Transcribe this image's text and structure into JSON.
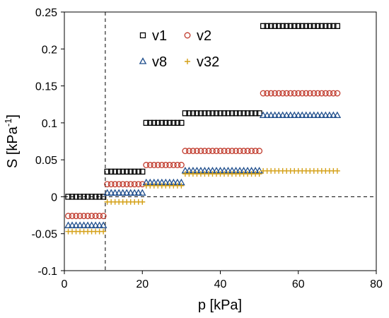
{
  "chart_data": {
    "type": "scatter",
    "xlabel": "p [kPa]",
    "ylabel_main": "S [kPa",
    "ylabel_sup": "-1",
    "ylabel_end": "]",
    "xlim": [
      0,
      80
    ],
    "ylim": [
      -0.1,
      0.25
    ],
    "xticks": [
      0,
      20,
      40,
      60,
      80
    ],
    "yticks": [
      -0.1,
      -0.05,
      0,
      0.05,
      0.1,
      0.15,
      0.2,
      0.25
    ],
    "xtick_labels": [
      "0",
      "20",
      "40",
      "60",
      "80"
    ],
    "ytick_labels": [
      "-0.1",
      "-0.05",
      "0",
      "0.05",
      "0.1",
      "0.15",
      "0.2",
      "0.25"
    ],
    "grid": false,
    "legend_position": "top-right",
    "reference_lines": {
      "vertical_x": 10.5,
      "horizontal_y": 0
    },
    "series": [
      {
        "name": "v1",
        "marker": "square",
        "color": "#000000",
        "segments": [
          {
            "x_start": 1,
            "x_end": 10,
            "y": 0.0
          },
          {
            "x_start": 11,
            "x_end": 20,
            "y": 0.034
          },
          {
            "x_start": 21,
            "x_end": 30,
            "y": 0.1
          },
          {
            "x_start": 31,
            "x_end": 50,
            "y": 0.113
          },
          {
            "x_start": 51,
            "x_end": 70,
            "y": 0.231
          }
        ]
      },
      {
        "name": "v2",
        "marker": "circle",
        "color": "#c0392b",
        "segments": [
          {
            "x_start": 1,
            "x_end": 10,
            "y": -0.026
          },
          {
            "x_start": 11,
            "x_end": 20,
            "y": 0.017
          },
          {
            "x_start": 21,
            "x_end": 30,
            "y": 0.043
          },
          {
            "x_start": 31,
            "x_end": 50,
            "y": 0.062
          },
          {
            "x_start": 51,
            "x_end": 70,
            "y": 0.14
          }
        ]
      },
      {
        "name": "v8",
        "marker": "triangle",
        "color": "#1f4e8c",
        "segments": [
          {
            "x_start": 1,
            "x_end": 10,
            "y": -0.039
          },
          {
            "x_start": 11,
            "x_end": 20,
            "y": 0.005
          },
          {
            "x_start": 21,
            "x_end": 30,
            "y": 0.019
          },
          {
            "x_start": 31,
            "x_end": 50,
            "y": 0.035
          },
          {
            "x_start": 51,
            "x_end": 70,
            "y": 0.11
          }
        ]
      },
      {
        "name": "v32",
        "marker": "plus",
        "color": "#d4a017",
        "segments": [
          {
            "x_start": 1,
            "x_end": 10,
            "y": -0.047
          },
          {
            "x_start": 11,
            "x_end": 20,
            "y": -0.007
          },
          {
            "x_start": 21,
            "x_end": 30,
            "y": 0.015
          },
          {
            "x_start": 31,
            "x_end": 50,
            "y": 0.031
          },
          {
            "x_start": 51,
            "x_end": 70,
            "y": 0.035
          }
        ]
      }
    ]
  }
}
